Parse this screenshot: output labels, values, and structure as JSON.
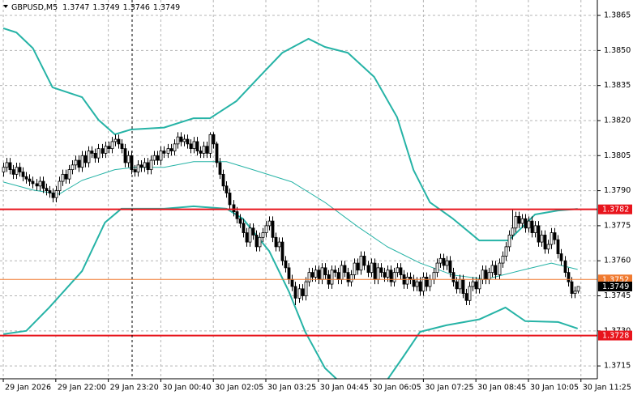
{
  "chart_data": {
    "type": "candlestick",
    "title": "GBPUSD,M5",
    "ylim": [
      1.37095,
      1.38716
    ],
    "yticks": [
      1.3865,
      {
        "value": 1.385,
        "label": "1.3850"
      },
      1.3835,
      {
        "value": 1.382,
        "label": "1.3820"
      },
      1.3805,
      {
        "value": 1.379,
        "label": "1.3790"
      },
      1.3775,
      {
        "value": 1.376,
        "label": "1.3760"
      },
      1.3745,
      {
        "value": 1.373,
        "label": "1.3730"
      },
      1.3715
    ],
    "xlim": [
      -1,
      181
    ],
    "xticks": [
      {
        "value": 0,
        "label": "29 Jan 2026"
      },
      {
        "value": 16,
        "label": "29 Jan 22:00"
      },
      {
        "value": 32,
        "label": "29 Jan 23:20"
      },
      {
        "value": 48,
        "label": "30 Jan 00:40"
      },
      {
        "value": 64,
        "label": "30 Jan 02:05"
      },
      {
        "value": 80,
        "label": "30 Jan 03:25"
      },
      {
        "value": 96,
        "label": "30 Jan 04:45"
      },
      {
        "value": 112,
        "label": "30 Jan 06:05"
      },
      {
        "value": 128,
        "label": "30 Jan 07:25"
      },
      {
        "value": 144,
        "label": "30 Jan 08:45"
      },
      {
        "value": 160,
        "label": "30 Jan 10:05"
      },
      {
        "value": 176,
        "label": "30 Jan 11:25"
      }
    ],
    "grid": true,
    "up_color": "#ffffff",
    "down_color": "#000000",
    "candles": [
      [
        1.3798,
        1.3802,
        1.3796,
        1.38
      ],
      [
        1.38,
        1.3804,
        1.3798,
        1.3802
      ],
      [
        1.3802,
        1.3804,
        1.3797,
        1.3799
      ],
      [
        1.3799,
        1.3801,
        1.3795,
        1.3797
      ],
      [
        1.3797,
        1.3802,
        1.3795,
        1.38
      ],
      [
        1.38,
        1.3802,
        1.3796,
        1.3798
      ],
      [
        1.3798,
        1.38,
        1.3794,
        1.3796
      ],
      [
        1.3796,
        1.3798,
        1.3793,
        1.3795
      ],
      [
        1.3795,
        1.3797,
        1.3792,
        1.3794
      ],
      [
        1.3794,
        1.3796,
        1.3791,
        1.3793
      ],
      [
        1.3793,
        1.3795,
        1.379,
        1.3792
      ],
      [
        1.3792,
        1.3796,
        1.379,
        1.3794
      ],
      [
        1.3794,
        1.3796,
        1.3789,
        1.3791
      ],
      [
        1.3791,
        1.3793,
        1.3788,
        1.379
      ],
      [
        1.379,
        1.3792,
        1.3787,
        1.3789
      ],
      [
        1.3789,
        1.3791,
        1.3785,
        1.3787
      ],
      [
        1.3787,
        1.3792,
        1.3785,
        1.379
      ],
      [
        1.379,
        1.3796,
        1.3788,
        1.3794
      ],
      [
        1.3794,
        1.3799,
        1.3792,
        1.3797
      ],
      [
        1.3797,
        1.3799,
        1.3793,
        1.3795
      ],
      [
        1.3795,
        1.3801,
        1.3793,
        1.3799
      ],
      [
        1.3799,
        1.3803,
        1.3797,
        1.3801
      ],
      [
        1.3801,
        1.3805,
        1.3799,
        1.3803
      ],
      [
        1.3803,
        1.3805,
        1.3798,
        1.38
      ],
      [
        1.38,
        1.3807,
        1.3798,
        1.3805
      ],
      [
        1.3805,
        1.3807,
        1.38,
        1.3802
      ],
      [
        1.3802,
        1.3809,
        1.38,
        1.3807
      ],
      [
        1.3807,
        1.3809,
        1.3804,
        1.3806
      ],
      [
        1.3806,
        1.3808,
        1.3802,
        1.3804
      ],
      [
        1.3804,
        1.381,
        1.3802,
        1.3808
      ],
      [
        1.3808,
        1.381,
        1.3804,
        1.3806
      ],
      [
        1.3806,
        1.3811,
        1.3804,
        1.3809
      ],
      [
        1.3809,
        1.3811,
        1.3806,
        1.3808
      ],
      [
        1.3808,
        1.3813,
        1.3806,
        1.3811
      ],
      [
        1.3811,
        1.3814,
        1.3809,
        1.3812
      ],
      [
        1.3812,
        1.3814,
        1.3808,
        1.381
      ],
      [
        1.381,
        1.3812,
        1.3806,
        1.3808
      ],
      [
        1.3808,
        1.381,
        1.38,
        1.3802
      ],
      [
        1.3802,
        1.3807,
        1.38,
        1.3805
      ],
      [
        1.3805,
        1.3807,
        1.3797,
        1.3799
      ],
      [
        1.3799,
        1.3801,
        1.3796,
        1.3798
      ],
      [
        1.3798,
        1.3803,
        1.3796,
        1.3801
      ],
      [
        1.3801,
        1.3803,
        1.3798,
        1.38
      ],
      [
        1.38,
        1.3804,
        1.3798,
        1.3802
      ],
      [
        1.3802,
        1.3804,
        1.3797,
        1.3799
      ],
      [
        1.3799,
        1.3805,
        1.3797,
        1.3803
      ],
      [
        1.3803,
        1.3807,
        1.3801,
        1.3805
      ],
      [
        1.3805,
        1.3807,
        1.3801,
        1.3803
      ],
      [
        1.3803,
        1.3809,
        1.3801,
        1.3807
      ],
      [
        1.3807,
        1.3809,
        1.3804,
        1.3806
      ],
      [
        1.3806,
        1.381,
        1.3804,
        1.3808
      ],
      [
        1.3808,
        1.381,
        1.3805,
        1.3807
      ],
      [
        1.3807,
        1.3812,
        1.3805,
        1.381
      ],
      [
        1.381,
        1.3815,
        1.3808,
        1.3813
      ],
      [
        1.3813,
        1.3815,
        1.3809,
        1.3811
      ],
      [
        1.3811,
        1.3814,
        1.3809,
        1.3812
      ],
      [
        1.3812,
        1.3814,
        1.3808,
        1.381
      ],
      [
        1.381,
        1.3812,
        1.3806,
        1.3808
      ],
      [
        1.3808,
        1.3813,
        1.3806,
        1.3811
      ],
      [
        1.3811,
        1.3813,
        1.3805,
        1.3807
      ],
      [
        1.3807,
        1.3809,
        1.3804,
        1.3806
      ],
      [
        1.3806,
        1.3811,
        1.3804,
        1.3809
      ],
      [
        1.3809,
        1.3811,
        1.3804,
        1.3806
      ],
      [
        1.3806,
        1.3815,
        1.3804,
        1.3814
      ],
      [
        1.3814,
        1.3815,
        1.3808,
        1.381
      ],
      [
        1.381,
        1.3811,
        1.38,
        1.3802
      ],
      [
        1.3802,
        1.3804,
        1.3795,
        1.3797
      ],
      [
        1.3797,
        1.3799,
        1.379,
        1.3792
      ],
      [
        1.3792,
        1.3794,
        1.3787,
        1.3789
      ],
      [
        1.3789,
        1.3791,
        1.3782,
        1.3784
      ],
      [
        1.3784,
        1.3786,
        1.3779,
        1.3781
      ],
      [
        1.3781,
        1.3783,
        1.3776,
        1.3778
      ],
      [
        1.3778,
        1.378,
        1.3774,
        1.3776
      ],
      [
        1.3776,
        1.3778,
        1.377,
        1.3772
      ],
      [
        1.3772,
        1.3774,
        1.3766,
        1.3768
      ],
      [
        1.3768,
        1.3776,
        1.3766,
        1.3774
      ],
      [
        1.3774,
        1.3776,
        1.3769,
        1.3771
      ],
      [
        1.3771,
        1.3773,
        1.3764,
        1.3766
      ],
      [
        1.3766,
        1.3772,
        1.3764,
        1.377
      ],
      [
        1.377,
        1.3774,
        1.3768,
        1.3772
      ],
      [
        1.3772,
        1.3777,
        1.377,
        1.3775
      ],
      [
        1.3775,
        1.3779,
        1.3773,
        1.3777
      ],
      [
        1.3777,
        1.3779,
        1.3768,
        1.377
      ],
      [
        1.377,
        1.3772,
        1.3764,
        1.3766
      ],
      [
        1.3766,
        1.377,
        1.3764,
        1.3768
      ],
      [
        1.3768,
        1.377,
        1.3758,
        1.376
      ],
      [
        1.376,
        1.3762,
        1.3755,
        1.3757
      ],
      [
        1.3757,
        1.3759,
        1.375,
        1.3752
      ],
      [
        1.3752,
        1.3754,
        1.3747,
        1.3749
      ],
      [
        1.3749,
        1.3751,
        1.3741,
        1.3744
      ],
      [
        1.3744,
        1.375,
        1.3742,
        1.3748
      ],
      [
        1.3748,
        1.375,
        1.3743,
        1.3745
      ],
      [
        1.3745,
        1.3753,
        1.3743,
        1.3751
      ],
      [
        1.3751,
        1.3757,
        1.3749,
        1.3755
      ],
      [
        1.3755,
        1.3757,
        1.3751,
        1.3753
      ],
      [
        1.3753,
        1.3758,
        1.3751,
        1.3756
      ],
      [
        1.3756,
        1.3758,
        1.375,
        1.3752
      ],
      [
        1.3752,
        1.3759,
        1.375,
        1.3757
      ],
      [
        1.3757,
        1.3759,
        1.3752,
        1.3754
      ],
      [
        1.3754,
        1.3756,
        1.3748,
        1.375
      ],
      [
        1.375,
        1.3758,
        1.3748,
        1.3756
      ],
      [
        1.3756,
        1.3758,
        1.3753,
        1.3755
      ],
      [
        1.3755,
        1.3757,
        1.375,
        1.3752
      ],
      [
        1.3752,
        1.376,
        1.375,
        1.3758
      ],
      [
        1.3758,
        1.376,
        1.3753,
        1.3755
      ],
      [
        1.3755,
        1.3757,
        1.3749,
        1.3751
      ],
      [
        1.3751,
        1.3756,
        1.3749,
        1.3754
      ],
      [
        1.3754,
        1.3761,
        1.3752,
        1.3759
      ],
      [
        1.3759,
        1.3761,
        1.3754,
        1.3756
      ],
      [
        1.3756,
        1.3764,
        1.3754,
        1.3762
      ],
      [
        1.3762,
        1.3764,
        1.3756,
        1.3758
      ],
      [
        1.3758,
        1.376,
        1.3753,
        1.3755
      ],
      [
        1.3755,
        1.3761,
        1.3753,
        1.3759
      ],
      [
        1.3759,
        1.3761,
        1.375,
        1.3752
      ],
      [
        1.3752,
        1.3759,
        1.375,
        1.3757
      ],
      [
        1.3757,
        1.3759,
        1.3753,
        1.3755
      ],
      [
        1.3755,
        1.3757,
        1.3751,
        1.3753
      ],
      [
        1.3753,
        1.3758,
        1.3751,
        1.3756
      ],
      [
        1.3756,
        1.3758,
        1.3749,
        1.3751
      ],
      [
        1.3751,
        1.3757,
        1.3749,
        1.3755
      ],
      [
        1.3755,
        1.3759,
        1.3753,
        1.3757
      ],
      [
        1.3757,
        1.3759,
        1.3752,
        1.3754
      ],
      [
        1.3754,
        1.3756,
        1.3748,
        1.375
      ],
      [
        1.375,
        1.3755,
        1.3748,
        1.3753
      ],
      [
        1.3753,
        1.3755,
        1.375,
        1.3752
      ],
      [
        1.3752,
        1.3754,
        1.3747,
        1.3749
      ],
      [
        1.3749,
        1.3753,
        1.3747,
        1.3751
      ],
      [
        1.3751,
        1.3753,
        1.3745,
        1.3747
      ],
      [
        1.3747,
        1.3755,
        1.3745,
        1.3753
      ],
      [
        1.3753,
        1.3755,
        1.3747,
        1.3749
      ],
      [
        1.3749,
        1.3754,
        1.3747,
        1.3752
      ],
      [
        1.3752,
        1.3757,
        1.375,
        1.3755
      ],
      [
        1.3755,
        1.3761,
        1.3753,
        1.3759
      ],
      [
        1.3759,
        1.3763,
        1.3757,
        1.3761
      ],
      [
        1.3761,
        1.3763,
        1.3756,
        1.3758
      ],
      [
        1.3758,
        1.3762,
        1.3756,
        1.376
      ],
      [
        1.376,
        1.3762,
        1.3753,
        1.3755
      ],
      [
        1.3755,
        1.3757,
        1.3749,
        1.3751
      ],
      [
        1.3751,
        1.3753,
        1.3746,
        1.3748
      ],
      [
        1.3748,
        1.3754,
        1.3746,
        1.3752
      ],
      [
        1.3752,
        1.3754,
        1.3744,
        1.3746
      ],
      [
        1.3746,
        1.3748,
        1.3741,
        1.3743
      ],
      [
        1.3743,
        1.3751,
        1.3741,
        1.3749
      ],
      [
        1.3749,
        1.3753,
        1.3747,
        1.3751
      ],
      [
        1.3751,
        1.3753,
        1.3746,
        1.3748
      ],
      [
        1.3748,
        1.3754,
        1.3746,
        1.3752
      ],
      [
        1.3752,
        1.3758,
        1.375,
        1.3756
      ],
      [
        1.3756,
        1.3758,
        1.375,
        1.3752
      ],
      [
        1.3752,
        1.3757,
        1.375,
        1.3755
      ],
      [
        1.3755,
        1.376,
        1.3753,
        1.3758
      ],
      [
        1.3758,
        1.376,
        1.3752,
        1.3754
      ],
      [
        1.3754,
        1.3761,
        1.3752,
        1.3759
      ],
      [
        1.3759,
        1.3764,
        1.3757,
        1.3762
      ],
      [
        1.3762,
        1.3768,
        1.376,
        1.3766
      ],
      [
        1.3766,
        1.3773,
        1.3764,
        1.3771
      ],
      [
        1.3771,
        1.3782,
        1.3769,
        1.3774
      ],
      [
        1.3774,
        1.3781,
        1.3772,
        1.3779
      ],
      [
        1.3779,
        1.3781,
        1.3774,
        1.3776
      ],
      [
        1.3776,
        1.378,
        1.3774,
        1.3778
      ],
      [
        1.3778,
        1.378,
        1.3772,
        1.3774
      ],
      [
        1.3774,
        1.3779,
        1.3772,
        1.3777
      ],
      [
        1.3777,
        1.3779,
        1.377,
        1.3772
      ],
      [
        1.3772,
        1.3777,
        1.377,
        1.3775
      ],
      [
        1.3775,
        1.3777,
        1.3766,
        1.3768
      ],
      [
        1.3768,
        1.3773,
        1.3766,
        1.3771
      ],
      [
        1.3771,
        1.3773,
        1.3763,
        1.3765
      ],
      [
        1.3765,
        1.3769,
        1.3763,
        1.3767
      ],
      [
        1.3767,
        1.3774,
        1.3765,
        1.3772
      ],
      [
        1.3772,
        1.3774,
        1.3767,
        1.3769
      ],
      [
        1.3769,
        1.3771,
        1.3761,
        1.3763
      ],
      [
        1.3763,
        1.3765,
        1.3758,
        1.376
      ],
      [
        1.376,
        1.3762,
        1.3753,
        1.3755
      ],
      [
        1.3755,
        1.3757,
        1.3749,
        1.3751
      ],
      [
        1.3751,
        1.3753,
        1.3744,
        1.3746
      ],
      [
        1.3746,
        1.3749,
        1.3744,
        1.3747
      ],
      [
        1.3747,
        1.3749,
        1.3746,
        1.3749
      ]
    ],
    "bands": [
      {
        "color": "#26b3a6",
        "width": 2,
        "x": [
          0,
          4,
          9,
          15,
          24,
          29,
          34,
          39,
          49,
          58,
          63,
          71,
          78,
          85,
          93,
          98,
          105,
          113,
          120,
          125,
          130,
          137,
          145,
          154,
          162,
          169,
          175
        ],
        "values": [
          1.38595,
          1.38577,
          1.3851,
          1.38342,
          1.383,
          1.38203,
          1.38141,
          1.38162,
          1.3817,
          1.3821,
          1.3821,
          1.38283,
          1.38387,
          1.3849,
          1.3855,
          1.38515,
          1.3849,
          1.38387,
          1.38214,
          1.37988,
          1.3785,
          1.3778,
          1.37687,
          1.37687,
          1.37798,
          1.37815,
          1.37822
        ]
      },
      {
        "color": "#26b3a6",
        "width": 1,
        "x": [
          0,
          9,
          17,
          24,
          34,
          40,
          49,
          58,
          68,
          76,
          88,
          98,
          108,
          117,
          127,
          137,
          147,
          157,
          167,
          175
        ],
        "values": [
          1.37937,
          1.37903,
          1.37885,
          1.37944,
          1.3799,
          1.38,
          1.38,
          1.38024,
          1.38024,
          1.3799,
          1.37937,
          1.3785,
          1.37746,
          1.3766,
          1.3759,
          1.37539,
          1.37521,
          1.37556,
          1.3759,
          1.37563
        ]
      },
      {
        "color": "#26b3a6",
        "width": 2,
        "x": [
          0,
          7,
          14,
          24,
          31,
          36,
          49,
          58,
          68,
          73,
          81,
          87,
          92,
          98,
          103,
          108,
          115,
          122,
          127,
          135,
          145,
          153,
          159,
          169,
          175
        ],
        "values": [
          1.37286,
          1.373,
          1.374,
          1.37556,
          1.37764,
          1.37823,
          1.37823,
          1.37833,
          1.37823,
          1.3778,
          1.37642,
          1.37469,
          1.37296,
          1.37141,
          1.37075,
          1.3703,
          1.3705,
          1.37192,
          1.37296,
          1.37324,
          1.37349,
          1.374,
          1.37342,
          1.37338,
          1.3731
        ]
      }
    ],
    "levels": [
      {
        "value": 1.3782,
        "color": "#e8141c",
        "width": 2
      },
      {
        "value": 1.3728,
        "color": "#e8141c",
        "width": 2
      },
      {
        "value": 1.3752,
        "color": "#f07a30",
        "width": 1
      }
    ],
    "current_color": "#000000"
  }
}
